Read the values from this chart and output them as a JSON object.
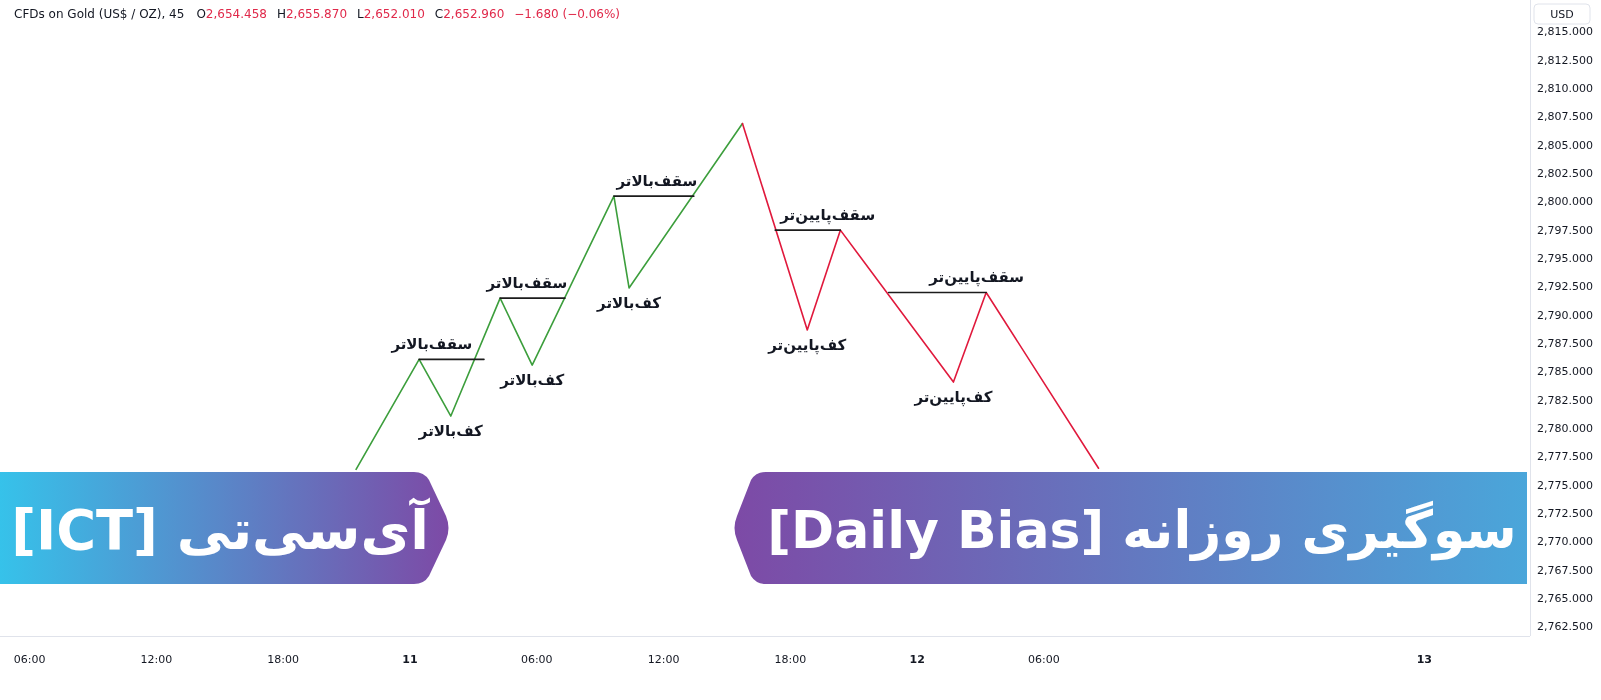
{
  "chart_data": {
    "type": "line",
    "title": "CFDs on Gold (US$ / OZ), 45",
    "ylabel": "USD",
    "xlim": [
      "--12-10T04:36",
      "--12-13T05:00"
    ],
    "ylim": [
      2761.7,
      2817.8
    ],
    "xticks": [
      {
        "value": "--12-10T06:00",
        "label": "06:00"
      },
      {
        "value": "--12-10T12:00",
        "label": "12:00"
      },
      {
        "value": "--12-10T18:00",
        "label": "18:00"
      },
      {
        "value": "--12-11T00:00",
        "label": "11"
      },
      {
        "value": "--12-11T06:00",
        "label": "06:00"
      },
      {
        "value": "--12-11T12:00",
        "label": "12:00"
      },
      {
        "value": "--12-11T18:00",
        "label": "18:00"
      },
      {
        "value": "--12-12T00:00",
        "label": "12"
      },
      {
        "value": "--12-12T06:00",
        "label": "06:00"
      },
      {
        "value": "--12-13T00:00",
        "label": "13"
      }
    ],
    "yticks": [
      {
        "value": 2762.5,
        "label": "2,762.500"
      },
      {
        "value": 2765,
        "label": "2,765.000"
      },
      {
        "value": 2767.5,
        "label": "2,767.500"
      },
      {
        "value": 2770,
        "label": "2,770.000"
      },
      {
        "value": 2772.5,
        "label": "2,772.500"
      },
      {
        "value": 2775,
        "label": "2,775.000"
      },
      {
        "value": 2777.5,
        "label": "2,777.500"
      },
      {
        "value": 2780,
        "label": "2,780.000"
      },
      {
        "value": 2782.5,
        "label": "2,782.500"
      },
      {
        "value": 2785,
        "label": "2,785.000"
      },
      {
        "value": 2787.5,
        "label": "2,787.500"
      },
      {
        "value": 2790,
        "label": "2,790.000"
      },
      {
        "value": 2792.5,
        "label": "2,792.500"
      },
      {
        "value": 2795,
        "label": "2,795.000"
      },
      {
        "value": 2797.5,
        "label": "2,797.500"
      },
      {
        "value": 2800,
        "label": "2,800.000"
      },
      {
        "value": 2802.5,
        "label": "2,802.500"
      },
      {
        "value": 2805,
        "label": "2,805.000"
      },
      {
        "value": 2807.5,
        "label": "2,807.500"
      },
      {
        "value": 2810,
        "label": "2,810.000"
      },
      {
        "value": 2812.5,
        "label": "2,812.500"
      },
      {
        "value": 2815,
        "label": "2,815.000"
      }
    ],
    "series": [
      {
        "color": "#3c9e3c",
        "x": [
          "--12-10T21:27",
          "--12-11T00:26",
          "--12-11T01:56",
          "--12-11T04:16",
          "--12-11T05:47",
          "--12-11T09:39",
          "--12-11T10:22",
          "--12-11T15:44"
        ],
        "values": [
          2776.4,
          2786.1,
          2781.1,
          2791.5,
          2785.6,
          2800.5,
          2792.4,
          2806.9
        ]
      },
      {
        "color": "#e0193c",
        "x": [
          "--12-11T15:44",
          "--12-11T18:48",
          "--12-11T20:22",
          "--12-12T01:43",
          "--12-12T03:16",
          "--12-12T08:35"
        ],
        "values": [
          2806.9,
          2788.7,
          2797.5,
          2784.1,
          2792.0,
          2776.5
        ]
      },
      {
        "color": "#1c1c1c",
        "x": [
          "--12-11T00:26",
          "--12-11T03:30"
        ],
        "values": [
          2786.1,
          2786.1
        ]
      },
      {
        "color": "#1c1c1c",
        "x": [
          "--12-11T04:16",
          "--12-11T07:20"
        ],
        "values": [
          2791.5,
          2791.5
        ]
      },
      {
        "color": "#1c1c1c",
        "x": [
          "--12-11T09:39",
          "--12-11T13:26"
        ],
        "values": [
          2800.5,
          2800.5
        ]
      },
      {
        "color": "#1c1c1c",
        "x": [
          "--12-11T17:17",
          "--12-11T20:22"
        ],
        "values": [
          2797.5,
          2797.5
        ]
      },
      {
        "color": "#1c1c1c",
        "x": [
          "--12-11T22:39",
          "--12-12T03:16"
        ],
        "values": [
          2792.0,
          2792.0
        ]
      }
    ],
    "annotations": [
      "O2,654.458",
      "H2,655.870",
      "L2,652.010",
      "C2,652.960",
      "−1.680 (−0.06%)",
      "آی‌سی‌تی [ICT]",
      "سوگیری روزانه [Daily Bias]",
      {
        "text": "سقف‌بالاتر",
        "x": "--12-11T01:02",
        "y": 2786.1
      },
      {
        "text": "کف‌بالاتر",
        "x": "--12-11T01:56",
        "y": 2781.1
      },
      {
        "text": "سقف‌بالاتر",
        "x": "--12-11T05:32",
        "y": 2791.5
      },
      {
        "text": "کف‌بالاتر",
        "x": "--12-11T05:47",
        "y": 2785.6
      },
      {
        "text": "سقف‌بالاتر",
        "x": "--12-11T11:41",
        "y": 2800.5
      },
      {
        "text": "کف‌بالاتر",
        "x": "--12-11T10:22",
        "y": 2792.4
      },
      {
        "text": "سقف‌پایین‌تر",
        "x": "--12-11T19:46",
        "y": 2797.5
      },
      {
        "text": "کف‌پایین‌تر",
        "x": "--12-11T18:48",
        "y": 2788.7
      },
      {
        "text": "سقف‌پایین‌تر",
        "x": "--12-12T02:49",
        "y": 2792.0
      },
      {
        "text": "کف‌پایین‌تر",
        "x": "--12-12T01:43",
        "y": 2784.1
      }
    ]
  }
}
